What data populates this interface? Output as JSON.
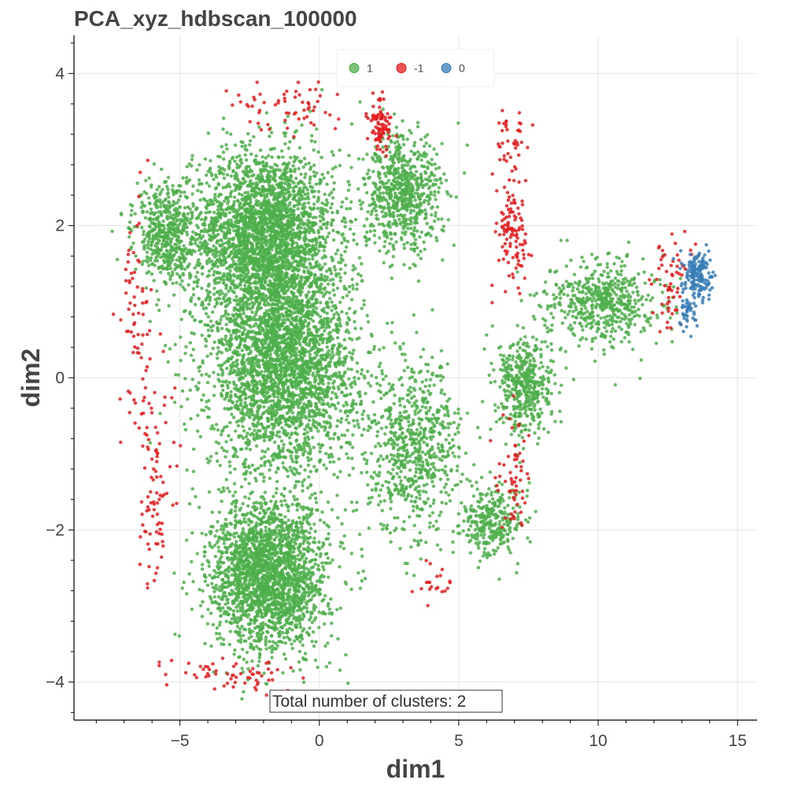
{
  "chart_data": {
    "type": "scatter",
    "title": "PCA_xyz_hdbscan_100000",
    "xlabel": "dim1",
    "ylabel": "dim2",
    "xlim": [
      -8.8,
      15.7
    ],
    "ylim": [
      -4.5,
      4.5
    ],
    "xticks": [
      -5,
      0,
      5,
      10,
      15
    ],
    "yticks": [
      -4,
      -2,
      0,
      2,
      4
    ],
    "xtick_labels": [
      "−5",
      "0",
      "5",
      "10",
      "15"
    ],
    "ytick_labels": [
      "−4",
      "−2",
      "0",
      "2",
      "4"
    ],
    "grid": true,
    "legend_placement": "top-center",
    "annotation": "Total number of clusters: 2",
    "series": [
      {
        "name": "1",
        "color": "#4daf4a",
        "regions": [
          {
            "x": -2.0,
            "y": 1.9,
            "sx": 2.3,
            "sy": 1.0,
            "n": 2600
          },
          {
            "x": -1.3,
            "y": 0.2,
            "sx": 2.4,
            "sy": 1.3,
            "n": 3000
          },
          {
            "x": -1.8,
            "y": -2.6,
            "sx": 1.9,
            "sy": 0.9,
            "n": 2200
          },
          {
            "x": 3.0,
            "y": 2.4,
            "sx": 1.3,
            "sy": 0.7,
            "n": 700
          },
          {
            "x": 3.4,
            "y": -0.9,
            "sx": 1.5,
            "sy": 1.0,
            "n": 700
          },
          {
            "x": 7.4,
            "y": -0.1,
            "sx": 0.9,
            "sy": 0.6,
            "n": 450
          },
          {
            "x": 10.2,
            "y": 1.0,
            "sx": 1.8,
            "sy": 0.5,
            "n": 550
          },
          {
            "x": 6.2,
            "y": -1.9,
            "sx": 1.0,
            "sy": 0.4,
            "n": 300
          },
          {
            "x": -5.5,
            "y": 1.9,
            "sx": 1.0,
            "sy": 0.6,
            "n": 500
          }
        ]
      },
      {
        "name": "-1",
        "color": "#e41a1c",
        "regions": [
          {
            "x": 2.2,
            "y": 3.3,
            "sx": 0.4,
            "sy": 0.3,
            "n": 90
          },
          {
            "x": 6.9,
            "y": 1.9,
            "sx": 0.5,
            "sy": 0.6,
            "n": 110
          },
          {
            "x": -5.9,
            "y": -1.5,
            "sx": 0.6,
            "sy": 1.4,
            "n": 90
          },
          {
            "x": -6.6,
            "y": 0.8,
            "sx": 0.5,
            "sy": 1.4,
            "n": 70
          },
          {
            "x": 12.6,
            "y": 1.3,
            "sx": 0.6,
            "sy": 0.6,
            "n": 60
          },
          {
            "x": 7.0,
            "y": -1.3,
            "sx": 0.6,
            "sy": 0.7,
            "n": 60
          },
          {
            "x": 6.9,
            "y": 3.1,
            "sx": 0.6,
            "sy": 0.4,
            "n": 40
          },
          {
            "x": -1.0,
            "y": 3.6,
            "sx": 1.8,
            "sy": 0.3,
            "n": 60
          },
          {
            "x": -3.0,
            "y": -3.9,
            "sx": 2.0,
            "sy": 0.2,
            "n": 60
          },
          {
            "x": 4.2,
            "y": -2.7,
            "sx": 0.6,
            "sy": 0.3,
            "n": 20
          }
        ]
      },
      {
        "name": "0",
        "color": "#377eb8",
        "regions": [
          {
            "x": 13.6,
            "y": 1.35,
            "sx": 0.45,
            "sy": 0.28,
            "n": 170
          },
          {
            "x": 13.2,
            "y": 0.85,
            "sx": 0.3,
            "sy": 0.18,
            "n": 40
          }
        ]
      }
    ]
  }
}
